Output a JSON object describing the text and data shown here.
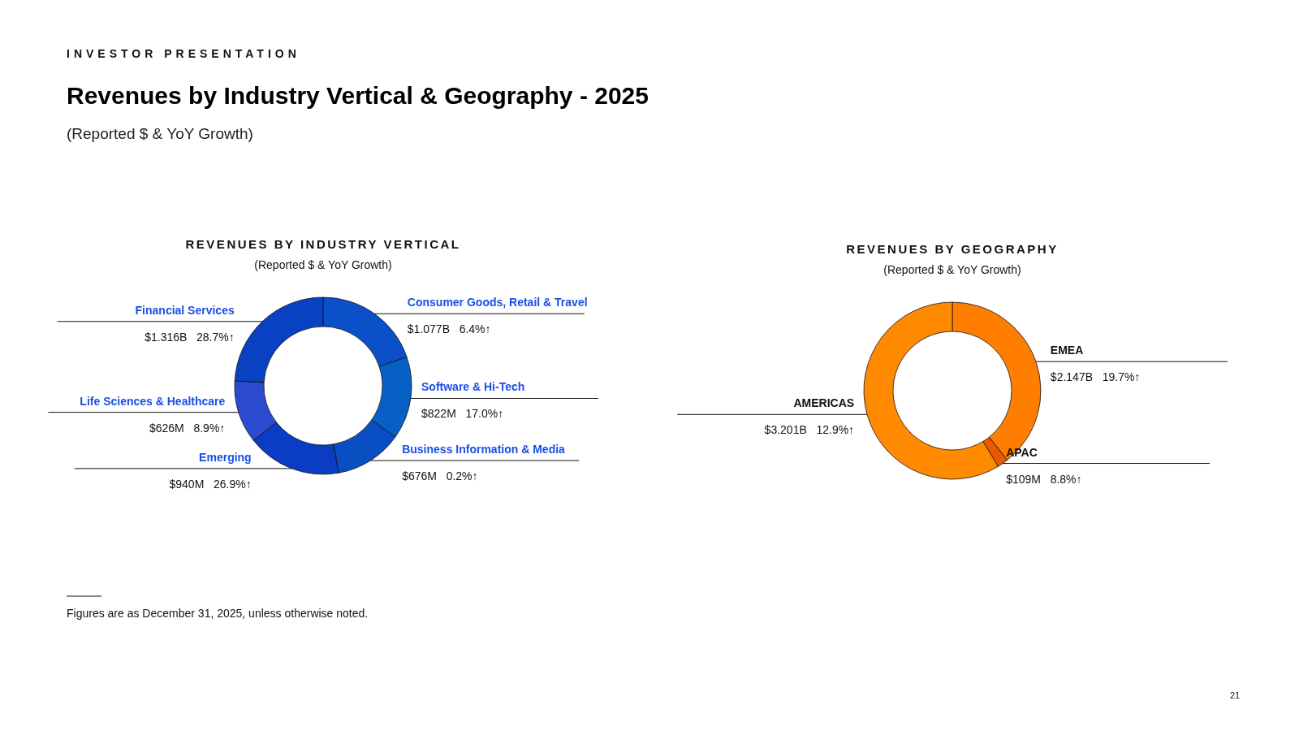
{
  "chart_data": [
    {
      "type": "donut",
      "title": "REVENUES BY INDUSTRY VERTICAL",
      "subtitle": "(Reported $ & YoY Growth)",
      "categories": [
        "Consumer Goods, Retail & Travel",
        "Software & Hi-Tech",
        "Business Information & Media",
        "Emerging",
        "Life Sciences & Healthcare",
        "Financial Services"
      ],
      "values": [
        19.74,
        15.06,
        12.39,
        17.23,
        11.47,
        24.11
      ],
      "colors": [
        "#0b4fc9",
        "#0660c6",
        "#0a4ec4",
        "#0b3cc4",
        "#2a4ad0",
        "#0842c2"
      ],
      "annotations": [
        "INVESTOR PRESENTATION",
        "Revenues by Industry Vertical & Geography - 2025",
        "(Reported $ & YoY Growth)",
        "Figures are as December 31, 2025,  unless otherwise noted.",
        "21",
        "$1.077B   6.4%↑",
        "$822M   17.0%↑",
        "$676M   0.2%↑",
        "$940M   26.9%↑",
        "$626M   8.9%↑",
        "$1.316B   28.7%↑"
      ]
    },
    {
      "type": "donut",
      "title": "REVENUES BY GEOGRAPHY",
      "subtitle": "(Reported $ & YoY Growth)",
      "categories": [
        "EMEA",
        "APAC",
        "AMERICAS"
      ],
      "values": [
        39.34,
        2.0,
        58.66
      ],
      "colors": [
        "#ff7e00",
        "#e85a00",
        "#ff8a00"
      ],
      "annotations": [
        "$2.147B   19.7%↑",
        "$109M   8.8%↑",
        "$3.201B   12.9%↑"
      ]
    }
  ]
}
